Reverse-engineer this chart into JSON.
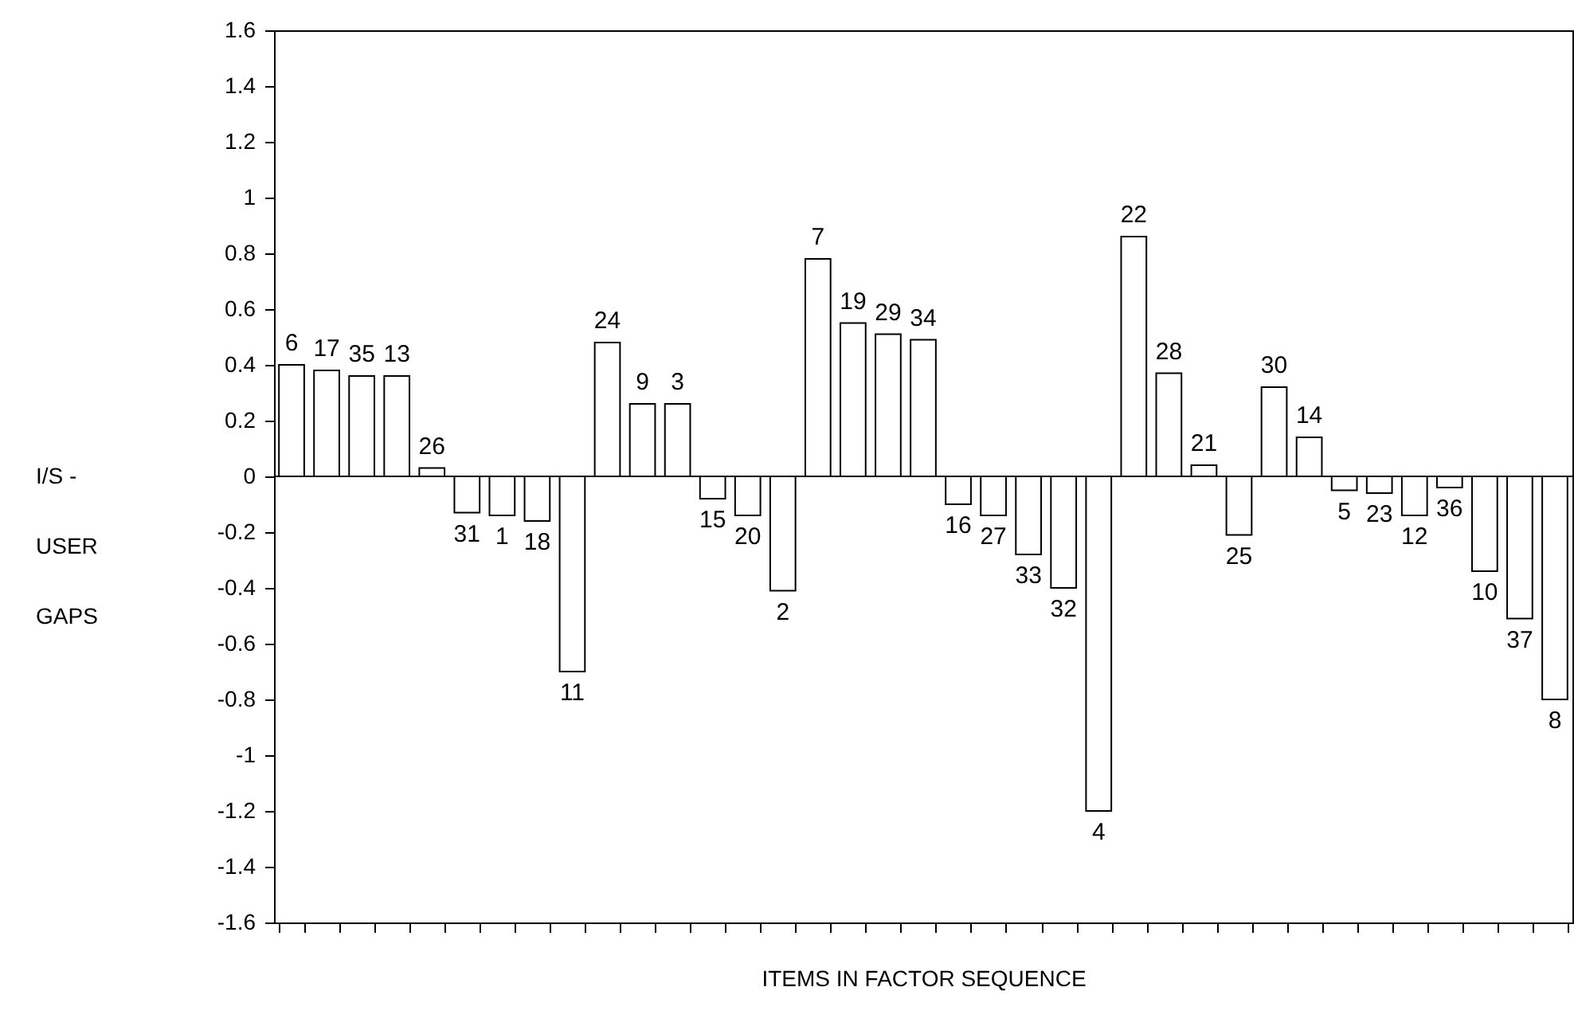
{
  "chart_data": {
    "type": "bar",
    "xlabel": "ITEMS IN FACTOR SEQUENCE",
    "ylabel": "I/S - USER GAPS",
    "categories": [
      "6",
      "17",
      "35",
      "13",
      "26",
      "31",
      "1",
      "18",
      "11",
      "24",
      "9",
      "3",
      "15",
      "20",
      "2",
      "7",
      "19",
      "29",
      "34",
      "16",
      "27",
      "33",
      "32",
      "4",
      "22",
      "28",
      "21",
      "25",
      "30",
      "14",
      "5",
      "23",
      "12",
      "36",
      "10",
      "37",
      "8"
    ],
    "values": [
      0.4,
      0.38,
      0.36,
      0.36,
      0.03,
      -0.13,
      -0.14,
      -0.16,
      -0.7,
      0.48,
      0.26,
      0.26,
      -0.08,
      -0.14,
      -0.41,
      0.78,
      0.55,
      0.51,
      0.49,
      -0.1,
      -0.14,
      -0.28,
      -0.4,
      -1.2,
      0.86,
      0.37,
      0.04,
      -0.21,
      0.32,
      0.14,
      -0.05,
      -0.06,
      -0.14,
      -0.04,
      -0.34,
      -0.51,
      -0.8
    ],
    "color": "#ffffff",
    "ylim": [
      -1.6,
      1.6
    ],
    "yticks": [
      -1.6,
      -1.4,
      -1.2,
      -1,
      -0.8,
      -0.6,
      -0.4,
      -0.2,
      0,
      0.2,
      0.4,
      0.6,
      0.8,
      1,
      1.2,
      1.4,
      1.6
    ],
    "ref_lines": [
      {
        "axis": "y",
        "value": 0
      }
    ],
    "tick_labels": "y",
    "grid": false
  }
}
